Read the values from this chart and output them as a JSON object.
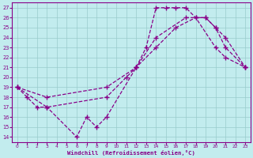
{
  "xlabel": "Windchill (Refroidissement éolien,°C)",
  "xlim": [
    -0.5,
    23.5
  ],
  "ylim": [
    13.5,
    27.5
  ],
  "xticks": [
    0,
    1,
    2,
    3,
    4,
    5,
    6,
    7,
    8,
    9,
    10,
    11,
    12,
    13,
    14,
    15,
    16,
    17,
    18,
    19,
    20,
    21,
    22,
    23
  ],
  "yticks": [
    14,
    15,
    16,
    17,
    18,
    19,
    20,
    21,
    22,
    23,
    24,
    25,
    26,
    27
  ],
  "bg_color": "#c2ecee",
  "line_color": "#880088",
  "grid_color": "#99cccc",
  "line1_x": [
    0,
    1,
    2,
    3,
    6,
    7,
    8,
    9,
    12,
    13,
    14,
    15,
    16,
    17,
    18,
    20,
    21,
    23
  ],
  "line1_y": [
    19,
    18,
    17,
    17,
    14,
    16,
    15,
    16,
    21,
    23,
    27,
    27,
    27,
    27,
    26,
    23,
    22,
    21
  ],
  "line2_x": [
    0,
    3,
    9,
    12,
    14,
    16,
    18,
    19,
    20,
    21,
    23
  ],
  "line2_y": [
    19,
    18,
    19,
    21,
    23,
    25,
    26,
    26,
    25,
    24,
    21
  ],
  "line3_x": [
    0,
    3,
    9,
    11,
    12,
    14,
    17,
    19,
    20,
    21,
    23
  ],
  "line3_y": [
    19,
    17,
    18,
    20,
    21,
    24,
    26,
    26,
    25,
    23,
    21
  ]
}
